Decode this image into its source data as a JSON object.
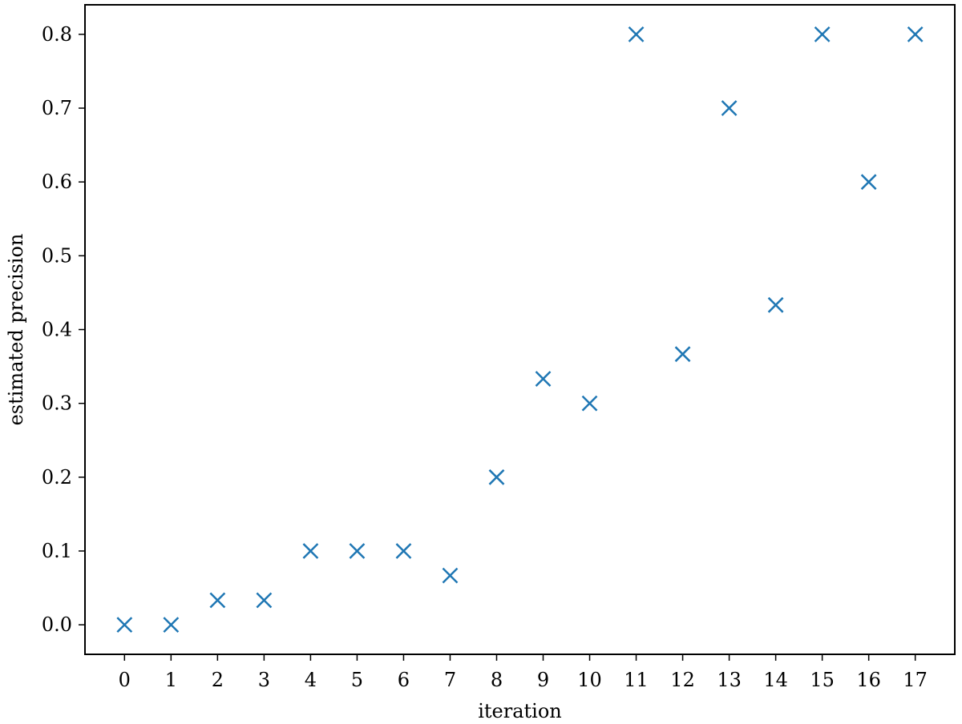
{
  "chart_data": {
    "type": "scatter",
    "title": "",
    "xlabel": "iteration",
    "ylabel": "estimated precision",
    "x": [
      0,
      1,
      2,
      3,
      4,
      5,
      6,
      7,
      8,
      9,
      10,
      11,
      12,
      13,
      14,
      15,
      16,
      17
    ],
    "series": [
      {
        "marker": "x",
        "color": "#1f77b4",
        "values": [
          0.0,
          0.0,
          0.0333,
          0.0333,
          0.1,
          0.1,
          0.1,
          0.0667,
          0.2,
          0.3333,
          0.3,
          0.8,
          0.3667,
          0.7,
          0.4333,
          0.8,
          0.6,
          0.8
        ]
      }
    ],
    "xticks": [
      "0",
      "1",
      "2",
      "3",
      "4",
      "5",
      "6",
      "7",
      "8",
      "9",
      "10",
      "11",
      "12",
      "13",
      "14",
      "15",
      "16",
      "17"
    ],
    "yticks": [
      "0.0",
      "0.1",
      "0.2",
      "0.3",
      "0.4",
      "0.5",
      "0.6",
      "0.7",
      "0.8"
    ],
    "xlim": [
      -0.85,
      17.85
    ],
    "ylim": [
      -0.04,
      0.84
    ],
    "grid": false,
    "legend": "none"
  }
}
